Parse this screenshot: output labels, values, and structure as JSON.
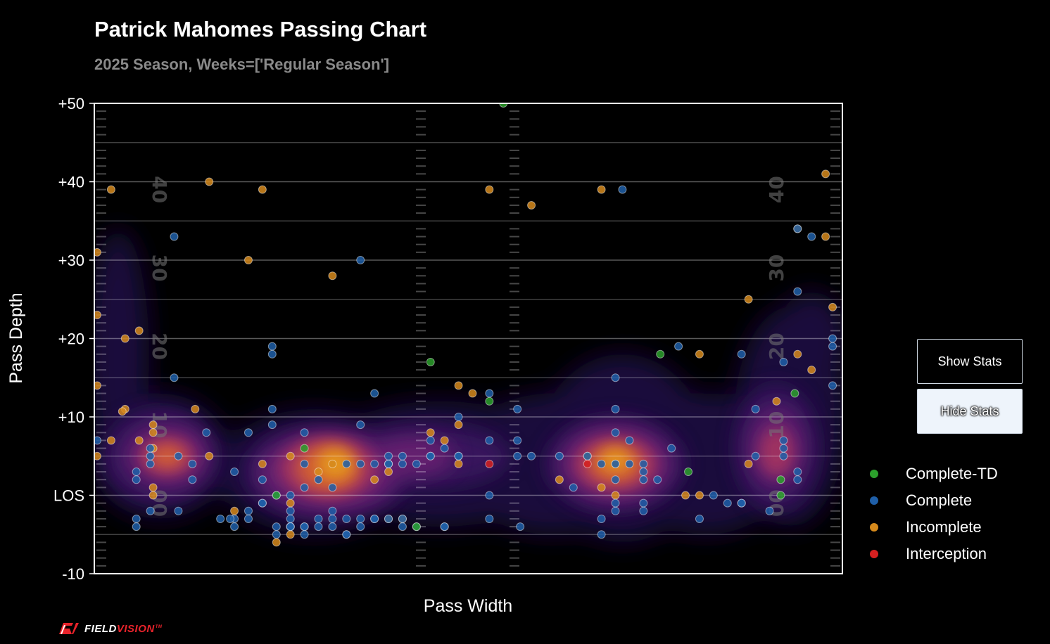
{
  "header": {
    "title": "Patrick Mahomes Passing Chart",
    "subtitle": "2025 Season, Weeks=['Regular Season']"
  },
  "buttons": {
    "show_label": "Show Stats",
    "hide_label": "Hide Stats"
  },
  "colors": {
    "complete_td": "#2ca02c",
    "complete": "#1f5fa8",
    "incomplete": "#d68a1c",
    "interception": "#d62020"
  },
  "legend": [
    {
      "label": "Complete-TD",
      "key": "complete_td"
    },
    {
      "label": "Complete",
      "key": "complete"
    },
    {
      "label": "Incomplete",
      "key": "incomplete"
    },
    {
      "label": "Interception",
      "key": "interception"
    }
  ],
  "logo": {
    "part1": "FIELD",
    "part2": "VISION",
    "tm": "TM"
  },
  "chart_data": {
    "type": "scatter",
    "title": "Patrick Mahomes Passing Chart",
    "subtitle": "2025 Season, Weeks=['Regular Season']",
    "xlabel": "Pass Width",
    "ylabel": "Pass Depth",
    "xlim": [
      -26.7,
      26.7
    ],
    "ylim": [
      -10,
      50
    ],
    "y_ticks": [
      {
        "v": 50,
        "label": "+50"
      },
      {
        "v": 40,
        "label": "+40"
      },
      {
        "v": 30,
        "label": "+30"
      },
      {
        "v": 20,
        "label": "+20"
      },
      {
        "v": 10,
        "label": "+10"
      },
      {
        "v": 0,
        "label": "LOS"
      },
      {
        "v": -10,
        "label": "-10"
      }
    ],
    "yard_numbers": [
      {
        "y": 40,
        "label": "40"
      },
      {
        "y": 30,
        "label": "30"
      },
      {
        "y": 20,
        "label": "20"
      },
      {
        "y": 10,
        "label": "10"
      },
      {
        "y": 0,
        "label": "00"
      }
    ],
    "series": [
      {
        "name": "Complete-TD",
        "points": [
          [
            2.5,
            50
          ],
          [
            -11.7,
            6
          ],
          [
            -13.7,
            0
          ],
          [
            -3.7,
            -4
          ],
          [
            -2.7,
            17
          ],
          [
            1.5,
            12
          ],
          [
            13.7,
            18
          ],
          [
            15.7,
            3
          ],
          [
            23.3,
            13
          ],
          [
            22.3,
            2
          ],
          [
            22.3,
            0
          ]
        ]
      },
      {
        "name": "Complete",
        "points": [
          [
            -26.5,
            7
          ],
          [
            -23.7,
            -3
          ],
          [
            -23.7,
            2
          ],
          [
            -23.7,
            3
          ],
          [
            -20.7,
            -2
          ],
          [
            -22.7,
            6
          ],
          [
            -20.7,
            5
          ],
          [
            -19.7,
            2
          ],
          [
            -21,
            15
          ],
          [
            -17.7,
            -3
          ],
          [
            -16.7,
            -3
          ],
          [
            -16.7,
            3
          ],
          [
            -15.7,
            -2
          ],
          [
            -15.7,
            -3
          ],
          [
            -15.7,
            8
          ],
          [
            -14.7,
            -1
          ],
          [
            -14.7,
            2
          ],
          [
            -13.7,
            -5
          ],
          [
            -12.7,
            -4
          ],
          [
            -11.7,
            -4
          ],
          [
            -11.7,
            -5
          ],
          [
            -11.7,
            4
          ],
          [
            -11.7,
            8
          ],
          [
            -12.7,
            -3
          ],
          [
            -12.7,
            -2
          ],
          [
            -12.7,
            0
          ],
          [
            -12.7,
            -4
          ],
          [
            -10.7,
            -4
          ],
          [
            -10.7,
            -3
          ],
          [
            -10.7,
            2
          ],
          [
            -9.7,
            -3
          ],
          [
            -9.7,
            -2
          ],
          [
            -8.7,
            -3
          ],
          [
            -8.7,
            4
          ],
          [
            -7.7,
            -3
          ],
          [
            -7.7,
            4
          ],
          [
            -7.7,
            9
          ],
          [
            -6.7,
            -3
          ],
          [
            -6.7,
            13
          ],
          [
            -5.7,
            -3
          ],
          [
            -5.7,
            4
          ],
          [
            -4.7,
            -3
          ],
          [
            -4.7,
            -4
          ],
          [
            -3.7,
            -4
          ],
          [
            -5.7,
            5
          ],
          [
            -4.7,
            5
          ],
          [
            -4.7,
            4
          ],
          [
            -3.7,
            4
          ],
          [
            -2.7,
            5
          ],
          [
            -2.7,
            7
          ],
          [
            -1.7,
            6
          ],
          [
            -0.7,
            10
          ],
          [
            -0.7,
            5
          ],
          [
            -1.7,
            -4
          ],
          [
            -2.7,
            5
          ],
          [
            -6.7,
            4
          ],
          [
            -7.7,
            30
          ],
          [
            -21,
            33
          ],
          [
            -14,
            19
          ],
          [
            -14,
            18
          ],
          [
            -14,
            11
          ],
          [
            -14,
            9
          ],
          [
            -17,
            -3
          ],
          [
            -18.7,
            8
          ],
          [
            -19.7,
            4
          ],
          [
            -23.7,
            -4
          ],
          [
            -22.7,
            5
          ],
          [
            -9.7,
            -4
          ],
          [
            -11.7,
            1
          ],
          [
            -9.7,
            1
          ],
          [
            -8.7,
            -5
          ],
          [
            -12.7,
            -4
          ],
          [
            -11.7,
            -4
          ],
          [
            -7.7,
            -4
          ],
          [
            -6.7,
            -3
          ],
          [
            -5.7,
            4
          ],
          [
            3.7,
            -4
          ],
          [
            1.5,
            -3
          ],
          [
            1.5,
            0
          ],
          [
            1.5,
            7
          ],
          [
            1.5,
            13
          ],
          [
            3.5,
            11
          ],
          [
            3.5,
            7
          ],
          [
            3.5,
            5
          ],
          [
            4.5,
            5
          ],
          [
            6.5,
            5
          ],
          [
            7.5,
            1
          ],
          [
            8.5,
            5
          ],
          [
            9.5,
            4
          ],
          [
            10.5,
            4
          ],
          [
            10.5,
            -2
          ],
          [
            10.5,
            -1
          ],
          [
            10.5,
            2
          ],
          [
            10.5,
            8
          ],
          [
            10.5,
            11
          ],
          [
            10.5,
            15
          ],
          [
            11.5,
            4
          ],
          [
            11.5,
            7
          ],
          [
            12.5,
            4
          ],
          [
            12.5,
            3
          ],
          [
            12.5,
            2
          ],
          [
            12.5,
            -1
          ],
          [
            12.5,
            -2
          ],
          [
            13.5,
            2
          ],
          [
            14.5,
            6
          ],
          [
            9.5,
            -5
          ],
          [
            9.5,
            -3
          ],
          [
            16.5,
            -3
          ],
          [
            17.5,
            0
          ],
          [
            18.5,
            -1
          ],
          [
            19.5,
            -1
          ],
          [
            20.5,
            5
          ],
          [
            20.5,
            11
          ],
          [
            21.5,
            -2
          ],
          [
            23.5,
            3
          ],
          [
            23.5,
            2
          ],
          [
            22.5,
            5
          ],
          [
            22.5,
            6
          ],
          [
            22.5,
            7
          ],
          [
            22.5,
            17
          ],
          [
            23.5,
            26
          ],
          [
            23.5,
            34
          ],
          [
            24.5,
            33
          ],
          [
            26,
            20
          ],
          [
            26,
            19
          ],
          [
            26,
            14
          ],
          [
            15,
            19
          ],
          [
            11,
            39
          ],
          [
            19.5,
            18
          ],
          [
            19.5,
            -1
          ],
          [
            -0.7,
            5
          ],
          [
            -8.7,
            -5
          ],
          [
            -13.7,
            -4
          ],
          [
            -14.7,
            -1
          ],
          [
            -16.7,
            -4
          ],
          [
            -22.7,
            -2
          ],
          [
            -22.7,
            4
          ],
          [
            -13.7,
            0
          ],
          [
            -1.7,
            -4
          ]
        ]
      },
      {
        "name": "Incomplete",
        "points": [
          [
            -26.5,
            31
          ],
          [
            -26.5,
            23
          ],
          [
            -26.5,
            14
          ],
          [
            -26.5,
            5
          ],
          [
            -25.5,
            39
          ],
          [
            -25.5,
            7
          ],
          [
            -24.5,
            20
          ],
          [
            -24.5,
            11
          ],
          [
            -24.7,
            10.7
          ],
          [
            -23.5,
            21
          ],
          [
            -23.5,
            7
          ],
          [
            -22.5,
            9
          ],
          [
            -22.5,
            8
          ],
          [
            -22.5,
            6
          ],
          [
            -22.5,
            1
          ],
          [
            -22.5,
            0
          ],
          [
            -19.5,
            11
          ],
          [
            -18.5,
            40
          ],
          [
            -18.5,
            5
          ],
          [
            -15.7,
            30
          ],
          [
            -14.7,
            39
          ],
          [
            -14.7,
            4
          ],
          [
            -13.7,
            -6
          ],
          [
            -12.7,
            -5
          ],
          [
            -12.7,
            5
          ],
          [
            -10.7,
            3
          ],
          [
            -9.7,
            4
          ],
          [
            -9.7,
            28
          ],
          [
            -6.7,
            2
          ],
          [
            -5.7,
            3
          ],
          [
            -5.7,
            4
          ],
          [
            -4.7,
            -3
          ],
          [
            -5.7,
            -3
          ],
          [
            -2.7,
            8
          ],
          [
            -1.7,
            7
          ],
          [
            -0.7,
            14
          ],
          [
            -0.7,
            9
          ],
          [
            -0.7,
            4
          ],
          [
            0.3,
            13
          ],
          [
            1.5,
            39
          ],
          [
            4.5,
            37
          ],
          [
            6.5,
            2
          ],
          [
            8.5,
            5
          ],
          [
            9.5,
            39
          ],
          [
            9.5,
            1
          ],
          [
            10.5,
            0
          ],
          [
            10.5,
            4
          ],
          [
            15.5,
            0
          ],
          [
            16.5,
            0
          ],
          [
            16.5,
            18
          ],
          [
            20,
            25
          ],
          [
            20,
            4
          ],
          [
            22,
            12
          ],
          [
            23.5,
            34
          ],
          [
            23.5,
            18
          ],
          [
            24.5,
            16
          ],
          [
            25.5,
            41
          ],
          [
            25.5,
            33
          ],
          [
            26,
            24
          ],
          [
            -12.7,
            -1
          ],
          [
            -16.7,
            -2
          ]
        ]
      },
      {
        "name": "Interception",
        "points": [
          [
            1.5,
            4
          ],
          [
            8.5,
            4
          ]
        ]
      }
    ],
    "density_note": "kernel density overlay of all pass locations"
  }
}
